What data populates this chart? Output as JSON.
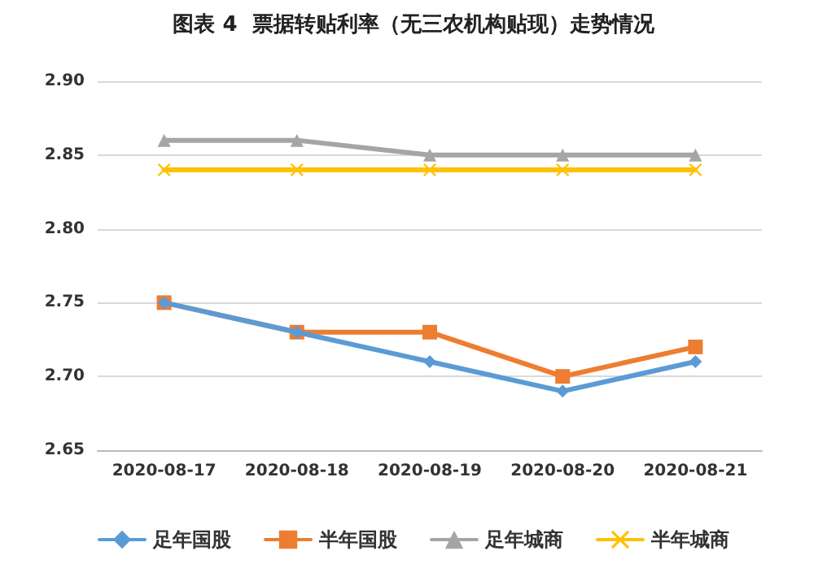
{
  "chart_data": {
    "type": "line",
    "title": "图表 4  票据转贴利率（无三农机构贴现）走势情况",
    "categories": [
      "2020-08-17",
      "2020-08-18",
      "2020-08-19",
      "2020-08-20",
      "2020-08-21"
    ],
    "series": [
      {
        "name": "足年国股",
        "color": "#5b9bd5",
        "marker": "diamond",
        "values": [
          2.75,
          2.73,
          2.71,
          2.69,
          2.71
        ]
      },
      {
        "name": "半年国股",
        "color": "#ed7d31",
        "marker": "square",
        "values": [
          2.75,
          2.73,
          2.73,
          2.7,
          2.72
        ]
      },
      {
        "name": "足年城商",
        "color": "#a5a5a5",
        "marker": "triangle",
        "values": [
          2.86,
          2.86,
          2.85,
          2.85,
          2.85
        ]
      },
      {
        "name": "半年城商",
        "color": "#ffc000",
        "marker": "cross",
        "values": [
          2.84,
          2.84,
          2.84,
          2.84,
          2.84
        ]
      }
    ],
    "ylim": [
      2.65,
      2.9
    ],
    "yticks": [
      {
        "value": 2.65,
        "label": "2.65"
      },
      {
        "value": 2.7,
        "label": "2.70"
      },
      {
        "value": 2.75,
        "label": "2.75"
      },
      {
        "value": 2.8,
        "label": "2.80"
      },
      {
        "value": 2.85,
        "label": "2.85"
      },
      {
        "value": 2.9,
        "label": "2.90"
      }
    ],
    "grid": "y",
    "legend": "bottom",
    "line_style": "solid"
  }
}
